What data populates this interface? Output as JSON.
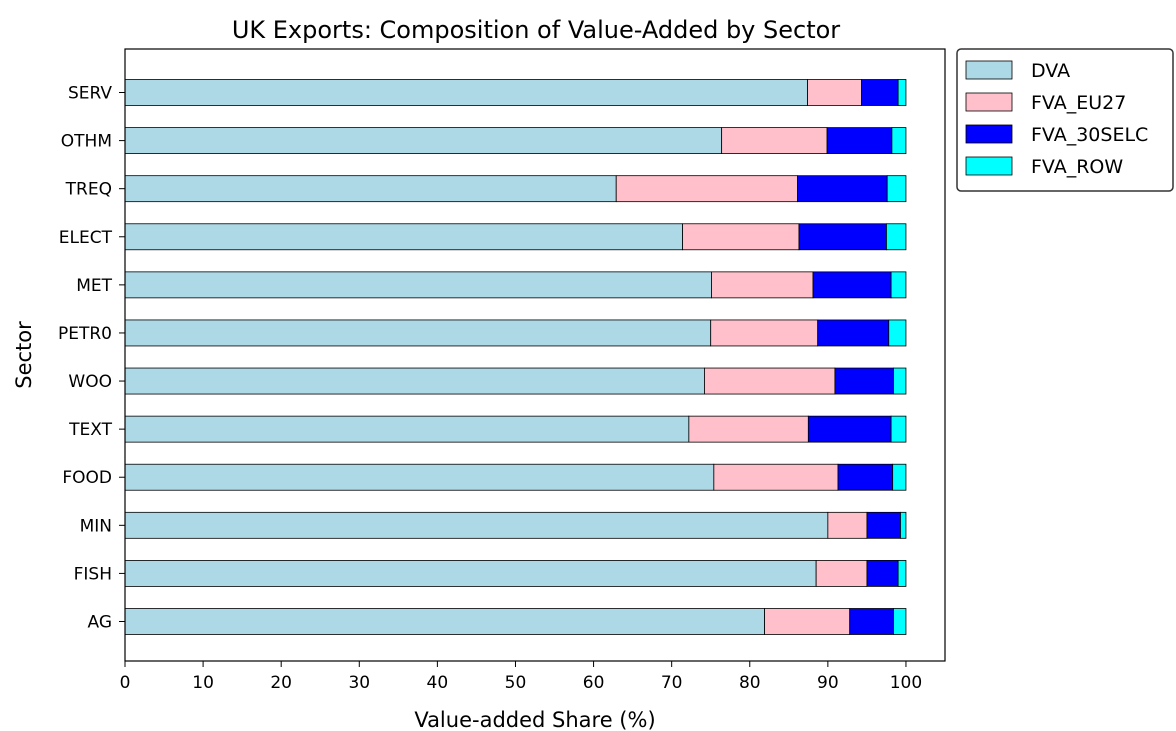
{
  "chart_data": {
    "type": "bar",
    "orientation": "horizontal",
    "stacked": true,
    "title": "UK Exports: Composition of Value-Added by Sector",
    "xlabel": "Value-added Share (%)",
    "ylabel": "Sector",
    "xlim": [
      0,
      105
    ],
    "xticks": [
      0,
      10,
      20,
      30,
      40,
      50,
      60,
      70,
      80,
      90,
      100
    ],
    "grid": false,
    "legend_position": "outside-top-right",
    "categories": [
      "AG",
      "FISH",
      "MIN",
      "FOOD",
      "TEXT",
      "WOO",
      "PETR0",
      "MET",
      "ELECT",
      "TREQ",
      "OTHM",
      "SERV"
    ],
    "series": [
      {
        "name": "DVA",
        "color": "#add8e6",
        "values": [
          81.9,
          88.5,
          90.0,
          75.4,
          72.2,
          74.2,
          75.0,
          75.1,
          71.4,
          62.9,
          76.4,
          87.4
        ]
      },
      {
        "name": "FVA_EU27",
        "color": "#ffc0cb",
        "values": [
          10.9,
          6.5,
          5.0,
          15.9,
          15.3,
          16.7,
          13.7,
          13.0,
          14.9,
          23.2,
          13.5,
          6.9
        ]
      },
      {
        "name": "FVA_30SELC",
        "color": "#0000ff",
        "values": [
          5.6,
          4.0,
          4.3,
          7.0,
          10.6,
          7.5,
          9.1,
          10.0,
          11.2,
          11.5,
          8.3,
          4.7
        ]
      },
      {
        "name": "FVA_ROW",
        "color": "#00ffff",
        "values": [
          1.6,
          1.0,
          0.7,
          1.7,
          1.9,
          1.6,
          2.2,
          1.9,
          2.5,
          2.4,
          1.8,
          1.0
        ]
      }
    ]
  }
}
